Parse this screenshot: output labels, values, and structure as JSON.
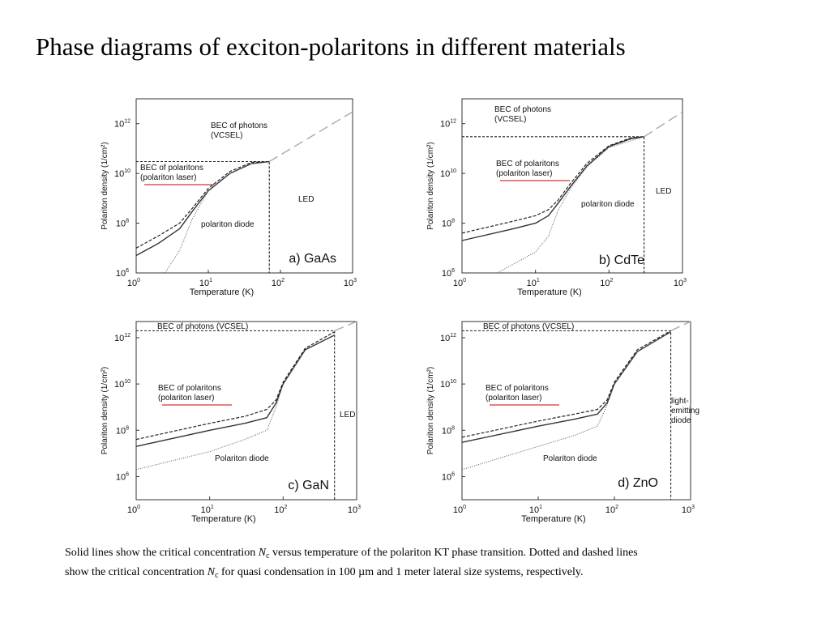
{
  "slide": {
    "title": "Phase diagrams of exciton-polaritons in different materials"
  },
  "chart_data": [
    {
      "type": "line",
      "x_scale": "log",
      "y_scale": "log",
      "xlim": [
        1,
        1000
      ],
      "ylim": [
        1000000,
        10000000000000
      ],
      "xlabel": "Temperature (K)",
      "ylabel": "Polariton density (1/cm²)",
      "x_ticks": [
        {
          "base": "10",
          "exp": "0",
          "value": 1
        },
        {
          "base": "10",
          "exp": "1",
          "value": 10
        },
        {
          "base": "10",
          "exp": "2",
          "value": 100
        },
        {
          "base": "10",
          "exp": "3",
          "value": 1000
        }
      ],
      "y_ticks": [
        {
          "base": "10",
          "exp": "6",
          "value": 1000000
        },
        {
          "base": "10",
          "exp": "8",
          "value": 100000000
        },
        {
          "base": "10",
          "exp": "10",
          "value": 10000000000
        },
        {
          "base": "10",
          "exp": "12",
          "value": 1000000000000
        }
      ],
      "panel_label": "a) GaAs",
      "regions": {
        "bec_photons": [
          "BEC of photons",
          "(VCSEL)"
        ],
        "bec_polaritons": [
          "BEC of polaritons",
          "(polariton laser)"
        ],
        "diode": [
          "polariton diode"
        ],
        "led": [
          "LED"
        ]
      },
      "boundary": {
        "t_max": 70,
        "n_max": 30000000000
      },
      "series": [
        {
          "style": "solid",
          "x": [
            1,
            2,
            4,
            6,
            10,
            20,
            40,
            70
          ],
          "y": [
            5000000,
            15000000,
            60000000,
            300000000,
            2000000000,
            10000000000,
            25000000000,
            30000000000
          ]
        },
        {
          "style": "dashed",
          "x": [
            1,
            2,
            4,
            6,
            10,
            20,
            40,
            70
          ],
          "y": [
            10000000,
            30000000,
            100000000,
            400000000,
            2500000000,
            12000000000,
            28000000000,
            30000000000
          ]
        },
        {
          "style": "dotted",
          "x": [
            2.5,
            4,
            6,
            10,
            20,
            40,
            70
          ],
          "y": [
            1000000,
            8000000,
            150000000,
            2000000000,
            10000000000,
            25000000000,
            30000000000
          ]
        },
        {
          "style": "longdash",
          "x": [
            70,
            1000
          ],
          "y": [
            30000000000,
            3000000000000
          ]
        }
      ]
    },
    {
      "type": "line",
      "x_scale": "log",
      "y_scale": "log",
      "xlim": [
        1,
        1000
      ],
      "ylim": [
        1000000,
        10000000000000
      ],
      "xlabel": "Temperature (K)",
      "ylabel": "Polariton density (1/cm²)",
      "x_ticks": [
        {
          "base": "10",
          "exp": "0",
          "value": 1
        },
        {
          "base": "10",
          "exp": "1",
          "value": 10
        },
        {
          "base": "10",
          "exp": "2",
          "value": 100
        },
        {
          "base": "10",
          "exp": "3",
          "value": 1000
        }
      ],
      "y_ticks": [
        {
          "base": "10",
          "exp": "6",
          "value": 1000000
        },
        {
          "base": "10",
          "exp": "8",
          "value": 100000000
        },
        {
          "base": "10",
          "exp": "10",
          "value": 10000000000
        },
        {
          "base": "10",
          "exp": "12",
          "value": 1000000000000
        }
      ],
      "panel_label": "b) CdTe",
      "regions": {
        "bec_photons": [
          "BEC of photons",
          "(VCSEL)"
        ],
        "bec_polaritons": [
          "BEC of polaritons",
          "(polariton laser)"
        ],
        "diode": [
          "polariton diode"
        ],
        "led": [
          "LED"
        ]
      },
      "boundary": {
        "t_max": 300,
        "n_max": 300000000000
      },
      "series": [
        {
          "style": "solid",
          "x": [
            1,
            5,
            10,
            15,
            20,
            30,
            50,
            100,
            200,
            300
          ],
          "y": [
            20000000,
            60000000,
            100000000,
            200000000,
            600000000,
            3000000000,
            20000000000,
            120000000000,
            250000000000,
            300000000000
          ]
        },
        {
          "style": "dashed",
          "x": [
            1,
            5,
            10,
            15,
            20,
            30,
            50,
            100,
            200,
            300
          ],
          "y": [
            40000000,
            120000000,
            200000000,
            350000000,
            800000000,
            4000000000,
            25000000000,
            130000000000,
            270000000000,
            300000000000
          ]
        },
        {
          "style": "dotted",
          "x": [
            3,
            6,
            10,
            15,
            20,
            30,
            50,
            100,
            300
          ],
          "y": [
            1000000,
            3000000,
            7000000,
            30000000,
            300000000,
            2500000000,
            18000000000,
            110000000000,
            300000000000
          ]
        },
        {
          "style": "longdash",
          "x": [
            300,
            1000
          ],
          "y": [
            300000000000,
            3000000000000
          ]
        }
      ]
    },
    {
      "type": "line",
      "x_scale": "log",
      "y_scale": "log",
      "xlim": [
        1,
        1000
      ],
      "ylim": [
        100000,
        5000000000000
      ],
      "xlabel": "Temperature (K)",
      "ylabel": "Polariton density (1/cm²)",
      "x_ticks": [
        {
          "base": "10",
          "exp": "0",
          "value": 1
        },
        {
          "base": "10",
          "exp": "1",
          "value": 10
        },
        {
          "base": "10",
          "exp": "2",
          "value": 100
        },
        {
          "base": "10",
          "exp": "3",
          "value": 1000
        }
      ],
      "y_ticks": [
        {
          "base": "10",
          "exp": "6",
          "value": 1000000
        },
        {
          "base": "10",
          "exp": "8",
          "value": 100000000
        },
        {
          "base": "10",
          "exp": "10",
          "value": 10000000000
        },
        {
          "base": "10",
          "exp": "12",
          "value": 1000000000000
        }
      ],
      "panel_label": "c) GaN",
      "regions": {
        "bec_photons": [
          "BEC of photons (VCSEL)"
        ],
        "bec_polaritons": [
          "BEC of polaritons",
          "(polariton laser)"
        ],
        "diode": [
          "Polariton diode"
        ],
        "led": [
          "LED"
        ]
      },
      "boundary": {
        "t_max": 500,
        "n_max": 2000000000000
      },
      "series": [
        {
          "style": "solid",
          "x": [
            1,
            10,
            30,
            60,
            80,
            100,
            200,
            500
          ],
          "y": [
            20000000,
            100000000,
            200000000,
            350000000,
            1500000000,
            10000000000,
            300000000000,
            1300000000000
          ]
        },
        {
          "style": "dashed",
          "x": [
            1,
            10,
            30,
            60,
            80,
            100,
            200,
            500
          ],
          "y": [
            40000000,
            200000000,
            400000000,
            800000000,
            2000000000,
            12000000000,
            350000000000,
            1800000000000
          ]
        },
        {
          "style": "dotted",
          "x": [
            1,
            10,
            30,
            60,
            80,
            100,
            200,
            500
          ],
          "y": [
            2000000,
            12000000,
            40000000,
            100000000,
            1000000000,
            10000000000,
            300000000000,
            1300000000000
          ]
        },
        {
          "style": "longdash",
          "x": [
            500,
            1000
          ],
          "y": [
            2000000000000,
            5000000000000
          ]
        }
      ]
    },
    {
      "type": "line",
      "x_scale": "log",
      "y_scale": "log",
      "xlim": [
        1,
        1000
      ],
      "ylim": [
        100000,
        5000000000000
      ],
      "xlabel": "Temperature (K)",
      "ylabel": "Polariton density (1/cm²)",
      "x_ticks": [
        {
          "base": "10",
          "exp": "0",
          "value": 1
        },
        {
          "base": "10",
          "exp": "1",
          "value": 10
        },
        {
          "base": "10",
          "exp": "2",
          "value": 100
        },
        {
          "base": "10",
          "exp": "3",
          "value": 1000
        }
      ],
      "y_ticks": [
        {
          "base": "10",
          "exp": "6",
          "value": 1000000
        },
        {
          "base": "10",
          "exp": "8",
          "value": 100000000
        },
        {
          "base": "10",
          "exp": "10",
          "value": 10000000000
        },
        {
          "base": "10",
          "exp": "12",
          "value": 1000000000000
        }
      ],
      "panel_label": "d) ZnO",
      "regions": {
        "bec_photons": [
          "BEC of photons (VCSEL)"
        ],
        "bec_polaritons": [
          "BEC of polaritons",
          "(polariton laser)"
        ],
        "diode": [
          "Polariton diode"
        ],
        "led": [
          "light-",
          "emitting",
          "diode"
        ]
      },
      "boundary": {
        "t_max": 550,
        "n_max": 2000000000000
      },
      "series": [
        {
          "style": "solid",
          "x": [
            1,
            10,
            30,
            60,
            80,
            100,
            200,
            550
          ],
          "y": [
            30000000,
            150000000,
            300000000,
            500000000,
            1500000000,
            10000000000,
            250000000000,
            1800000000000
          ]
        },
        {
          "style": "dashed",
          "x": [
            1,
            10,
            30,
            60,
            80,
            100,
            200,
            550
          ],
          "y": [
            50000000,
            250000000,
            500000000,
            800000000,
            2000000000,
            12000000000,
            300000000000,
            2000000000000
          ]
        },
        {
          "style": "dotted",
          "x": [
            1,
            10,
            30,
            60,
            80,
            100,
            200,
            550
          ],
          "y": [
            2000000,
            20000000,
            60000000,
            150000000,
            1200000000,
            10000000000,
            250000000000,
            1800000000000
          ]
        },
        {
          "style": "longdash",
          "x": [
            550,
            1000
          ],
          "y": [
            2000000000000,
            5000000000000
          ]
        }
      ]
    }
  ],
  "caption": {
    "line1_pre": "Solid lines show the critical concentration ",
    "n_symbol": "N",
    "sub_c": "c",
    "line1_post": " versus temperature of the polariton KT phase transition. Dotted and dashed lines",
    "line2_pre": "show the critical concentration ",
    "line2_post": " for quasi condensation in 100 µm and 1 meter lateral size systems, respectively."
  },
  "colors": {
    "axis": "#333333",
    "underline": "#cc0000",
    "long_dash_line": "#aaaaaa"
  }
}
